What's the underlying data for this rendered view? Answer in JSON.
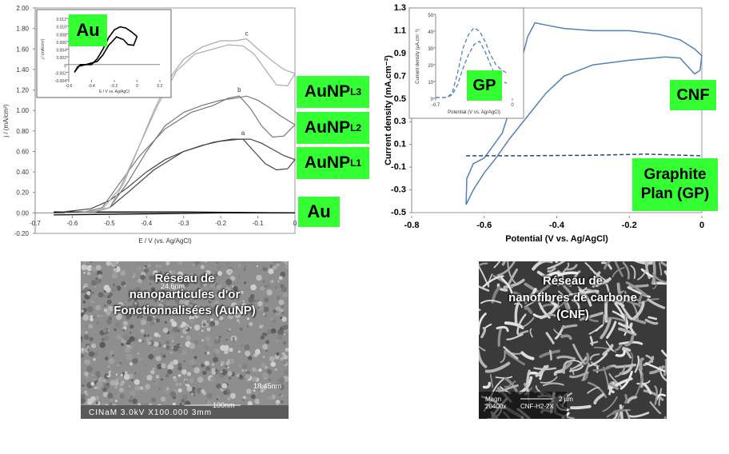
{
  "chart_data": [
    {
      "type": "line",
      "xlabel": "E / V (vs. Ag/AgCl)",
      "ylabel": "j / (mA/cm²)",
      "xlim": [
        -0.7,
        0
      ],
      "ylim": [
        -0.2,
        2.0
      ],
      "xticks": [
        "-0.7",
        "-0.6",
        "-0.5",
        "-0.4",
        "-0.3",
        "-0.2",
        "-0.1",
        "0"
      ],
      "yticks": [
        "-0.20",
        "0.00",
        "0.20",
        "0.40",
        "0.60",
        "0.80",
        "1.00",
        "1.20",
        "1.40",
        "1.60",
        "1.80",
        "2.00"
      ],
      "curve_letters": [
        "a",
        "b",
        "c"
      ],
      "series": [
        {
          "name": "Au",
          "color": "#000000",
          "forward": [
            [
              -0.65,
              -0.02
            ],
            [
              -0.4,
              -0.01
            ],
            [
              -0.2,
              0.0
            ],
            [
              0,
              0.0
            ]
          ],
          "backward": [
            [
              0,
              0.0
            ],
            [
              -0.3,
              0.01
            ],
            [
              -0.65,
              0.01
            ]
          ]
        },
        {
          "name": "AuNPL1",
          "color": "#444444",
          "forward": [
            [
              -0.65,
              0.0
            ],
            [
              -0.55,
              0.04
            ],
            [
              -0.5,
              0.12
            ],
            [
              -0.45,
              0.25
            ],
            [
              -0.4,
              0.4
            ],
            [
              -0.35,
              0.52
            ],
            [
              -0.3,
              0.6
            ],
            [
              -0.25,
              0.66
            ],
            [
              -0.2,
              0.7
            ],
            [
              -0.15,
              0.72
            ],
            [
              -0.12,
              0.72
            ],
            [
              -0.09,
              0.68
            ],
            [
              -0.06,
              0.62
            ],
            [
              -0.03,
              0.56
            ],
            [
              0,
              0.52
            ]
          ],
          "backward": [
            [
              0,
              0.52
            ],
            [
              -0.02,
              0.43
            ],
            [
              -0.05,
              0.42
            ],
            [
              -0.08,
              0.48
            ],
            [
              -0.11,
              0.6
            ],
            [
              -0.14,
              0.72
            ],
            [
              -0.17,
              0.72
            ],
            [
              -0.22,
              0.69
            ],
            [
              -0.3,
              0.6
            ],
            [
              -0.38,
              0.42
            ],
            [
              -0.45,
              0.2
            ],
            [
              -0.5,
              0.05
            ],
            [
              -0.56,
              0.0
            ],
            [
              -0.65,
              0.0
            ]
          ]
        },
        {
          "name": "AuNPL2",
          "color": "#777777",
          "forward": [
            [
              -0.62,
              0.0
            ],
            [
              -0.55,
              0.01
            ],
            [
              -0.5,
              0.05
            ],
            [
              -0.45,
              0.3
            ],
            [
              -0.4,
              0.6
            ],
            [
              -0.35,
              0.85
            ],
            [
              -0.3,
              0.98
            ],
            [
              -0.25,
              1.05
            ],
            [
              -0.2,
              1.1
            ],
            [
              -0.16,
              1.12
            ],
            [
              -0.13,
              1.14
            ],
            [
              -0.1,
              1.1
            ],
            [
              -0.07,
              1.03
            ],
            [
              -0.04,
              0.95
            ],
            [
              0,
              0.86
            ]
          ],
          "backward": [
            [
              0,
              0.86
            ],
            [
              -0.03,
              0.75
            ],
            [
              -0.06,
              0.74
            ],
            [
              -0.09,
              0.85
            ],
            [
              -0.12,
              1.02
            ],
            [
              -0.15,
              1.14
            ],
            [
              -0.18,
              1.12
            ],
            [
              -0.22,
              1.05
            ],
            [
              -0.28,
              0.98
            ],
            [
              -0.35,
              0.82
            ],
            [
              -0.42,
              0.55
            ],
            [
              -0.48,
              0.25
            ],
            [
              -0.52,
              0.05
            ],
            [
              -0.58,
              0.0
            ]
          ]
        },
        {
          "name": "AuNPL3",
          "color": "#aaaaaa",
          "forward": [
            [
              -0.62,
              0.0
            ],
            [
              -0.55,
              0.0
            ],
            [
              -0.5,
              0.05
            ],
            [
              -0.46,
              0.3
            ],
            [
              -0.42,
              0.65
            ],
            [
              -0.38,
              1.0
            ],
            [
              -0.34,
              1.3
            ],
            [
              -0.3,
              1.5
            ],
            [
              -0.25,
              1.62
            ],
            [
              -0.2,
              1.68
            ],
            [
              -0.16,
              1.68
            ],
            [
              -0.13,
              1.7
            ],
            [
              -0.1,
              1.6
            ],
            [
              -0.06,
              1.48
            ],
            [
              -0.03,
              1.4
            ],
            [
              0,
              1.36
            ]
          ],
          "backward": [
            [
              0,
              1.36
            ],
            [
              -0.02,
              1.24
            ],
            [
              -0.05,
              1.25
            ],
            [
              -0.08,
              1.4
            ],
            [
              -0.11,
              1.55
            ],
            [
              -0.14,
              1.63
            ],
            [
              -0.18,
              1.64
            ],
            [
              -0.22,
              1.6
            ],
            [
              -0.27,
              1.55
            ],
            [
              -0.32,
              1.38
            ],
            [
              -0.37,
              1.05
            ],
            [
              -0.42,
              0.65
            ],
            [
              -0.47,
              0.25
            ],
            [
              -0.52,
              0.03
            ],
            [
              -0.58,
              0.0
            ]
          ]
        }
      ],
      "tags": [
        {
          "key": "AuNPL3",
          "text": "AuNP",
          "sub": "L3"
        },
        {
          "key": "AuNPL2",
          "text": "AuNP",
          "sub": "L2"
        },
        {
          "key": "AuNPL1",
          "text": "AuNP",
          "sub": "L1"
        },
        {
          "key": "Au",
          "text": "Au",
          "sub": ""
        }
      ]
    },
    {
      "type": "line",
      "inset_of": "left",
      "label": "Au",
      "xlabel": "E / V vs. Ag/AgCl",
      "ylabel": "j / (mA/cm²)",
      "xlim": [
        -0.6,
        0.2
      ],
      "ylim": [
        -0.004,
        0.012
      ],
      "xticks": [
        "-0.6",
        "-0.4",
        "-0.2",
        "0",
        "0.2"
      ],
      "yticks": [
        "-0.004",
        "-0.002",
        "0",
        "0.002",
        "0.004",
        "0.006",
        "0.008",
        "0.010",
        "0.012"
      ],
      "series": [
        {
          "name": "forward",
          "color": "#000000",
          "points": [
            [
              -0.55,
              -0.002
            ],
            [
              -0.5,
              0.0
            ],
            [
              -0.4,
              0.0
            ],
            [
              -0.35,
              0.0015
            ],
            [
              -0.3,
              0.004
            ],
            [
              -0.25,
              0.007
            ],
            [
              -0.2,
              0.009
            ],
            [
              -0.15,
              0.0098
            ],
            [
              -0.1,
              0.0095
            ],
            [
              -0.05,
              0.0085
            ],
            [
              0,
              0.0073
            ]
          ]
        },
        {
          "name": "backward",
          "color": "#000000",
          "points": [
            [
              0,
              0.0073
            ],
            [
              -0.03,
              0.005
            ],
            [
              -0.08,
              0.0052
            ],
            [
              -0.12,
              0.0065
            ],
            [
              -0.18,
              0.0072
            ],
            [
              -0.25,
              0.005
            ],
            [
              -0.3,
              0.0025
            ],
            [
              -0.35,
              0.0008
            ],
            [
              -0.45,
              0.0
            ],
            [
              -0.52,
              -0.0005
            ],
            [
              -0.55,
              -0.002
            ]
          ]
        }
      ]
    },
    {
      "type": "line",
      "xlabel": "Potential (V vs. Ag/AgCl)",
      "ylabel": "Current density (mA.cm⁻²)",
      "xlim": [
        -0.8,
        0
      ],
      "ylim": [
        -0.5,
        1.3
      ],
      "xticks": [
        "-0.8",
        "-0.6",
        "-0.4",
        "-0.2",
        "0"
      ],
      "yticks": [
        "-0.5",
        "-0.3",
        "-0.1",
        "0.1",
        "0.3",
        "0.5",
        "0.7",
        "0.9",
        "1.1",
        "1.3"
      ],
      "series": [
        {
          "name": "CNF",
          "color": "#4f81bd",
          "style": "solid",
          "points": [
            [
              -0.65,
              -0.43
            ],
            [
              -0.648,
              -0.2
            ],
            [
              -0.63,
              -0.07
            ],
            [
              -0.6,
              -0.02
            ],
            [
              -0.55,
              0.2
            ],
            [
              -0.52,
              0.5
            ],
            [
              -0.5,
              0.8
            ],
            [
              -0.48,
              1.05
            ],
            [
              -0.46,
              1.17
            ],
            [
              -0.43,
              1.15
            ],
            [
              -0.38,
              1.12
            ],
            [
              -0.3,
              1.1
            ],
            [
              -0.2,
              1.1
            ],
            [
              -0.12,
              1.07
            ],
            [
              -0.06,
              1.02
            ],
            [
              -0.02,
              0.94
            ],
            [
              0,
              0.88
            ],
            [
              -0.005,
              0.75
            ],
            [
              -0.02,
              0.72
            ],
            [
              -0.06,
              0.86
            ],
            [
              -0.1,
              0.87
            ],
            [
              -0.2,
              0.84
            ],
            [
              -0.3,
              0.8
            ],
            [
              -0.38,
              0.7
            ],
            [
              -0.43,
              0.55
            ],
            [
              -0.48,
              0.35
            ],
            [
              -0.53,
              0.15
            ],
            [
              -0.57,
              -0.03
            ],
            [
              -0.6,
              -0.15
            ],
            [
              -0.63,
              -0.3
            ],
            [
              -0.65,
              -0.43
            ]
          ]
        },
        {
          "name": "GP",
          "color": "#1f497d",
          "style": "dashed",
          "points": [
            [
              -0.65,
              0.0
            ],
            [
              -0.5,
              0.0
            ],
            [
              -0.3,
              0.005
            ],
            [
              -0.15,
              0.015
            ],
            [
              -0.05,
              0.005
            ],
            [
              0,
              0.0
            ]
          ]
        }
      ],
      "tags": [
        {
          "key": "CNF",
          "text": "CNF"
        },
        {
          "key": "GP",
          "text": "Graphite Plan (GP)"
        }
      ]
    },
    {
      "type": "line",
      "inset_of": "right",
      "label": "GP",
      "xlabel": "Potential (V vs. Ag/AgCl)",
      "ylabel": "Current density (µA.cm⁻²)",
      "xlim": [
        -0.7,
        0
      ],
      "ylim": [
        0,
        50
      ],
      "xticks": [
        "-0.7",
        "0"
      ],
      "yticks": [
        "0",
        "10",
        "20",
        "30",
        "40",
        "50"
      ],
      "series": [
        {
          "name": "upper",
          "color": "#4f81bd",
          "style": "dashed",
          "points": [
            [
              -0.7,
              0.5
            ],
            [
              -0.6,
              0.5
            ],
            [
              -0.55,
              3
            ],
            [
              -0.5,
              15
            ],
            [
              -0.45,
              30
            ],
            [
              -0.4,
              38
            ],
            [
              -0.35,
              42
            ],
            [
              -0.3,
              40
            ],
            [
              -0.25,
              34
            ],
            [
              -0.2,
              26
            ],
            [
              -0.15,
              20
            ],
            [
              -0.1,
              17
            ],
            [
              -0.05,
              15
            ]
          ]
        },
        {
          "name": "lower",
          "color": "#4f81bd",
          "style": "dashed",
          "points": [
            [
              -0.7,
              0.5
            ],
            [
              -0.6,
              0.5
            ],
            [
              -0.55,
              2
            ],
            [
              -0.5,
              8
            ],
            [
              -0.45,
              18
            ],
            [
              -0.4,
              26
            ],
            [
              -0.35,
              32
            ],
            [
              -0.3,
              34
            ],
            [
              -0.25,
              28
            ],
            [
              -0.2,
              20
            ],
            [
              -0.15,
              13
            ],
            [
              -0.1,
              10
            ],
            [
              -0.05,
              9
            ]
          ]
        }
      ]
    }
  ],
  "sem_left": {
    "title_lines": [
      "Réseau de",
      "nanoparticules d'or",
      "Fonctionnalisées (AuNP)"
    ],
    "label_24": "24.6nm",
    "label_18": "18.45nm",
    "scale": "100nm",
    "footer": "CINaM 3.0kV X100.000  3mm",
    "tone": "#8e8e8e"
  },
  "sem_right": {
    "title_lines": [
      "Réseau de",
      "nanofibres de carbone",
      "(CNF)"
    ],
    "mag": "Magn",
    "magval": "20400x",
    "scale": "2 µm",
    "sample": "CNF-H2-2X",
    "tone": "#3a3a3a"
  },
  "colors": {
    "tag_green": "#33ff33",
    "cnf_blue": "#4f81bd",
    "gp_blue": "#1f497d"
  }
}
